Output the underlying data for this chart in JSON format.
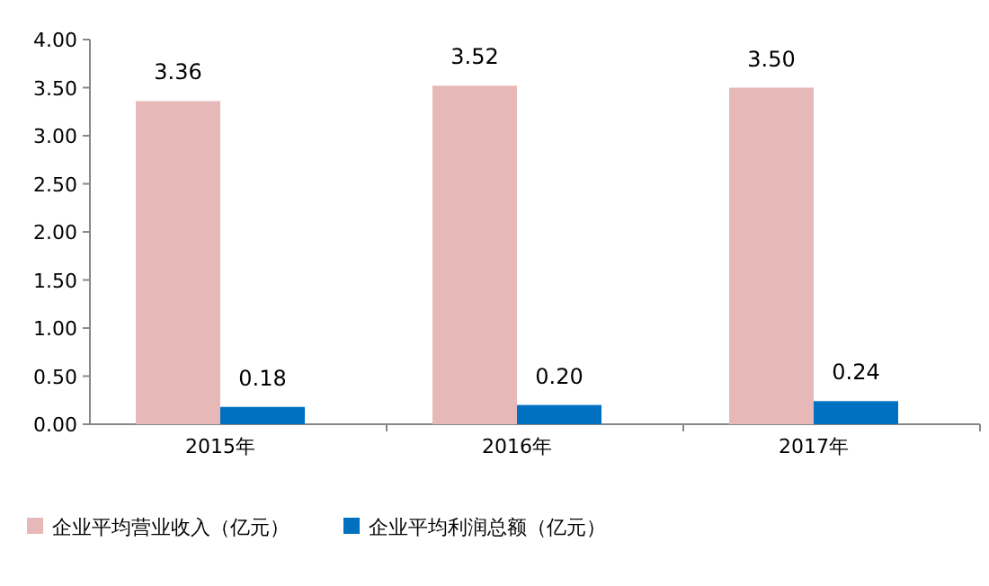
{
  "chart_data": {
    "type": "bar",
    "categories": [
      "2015年",
      "2016年",
      "2017年"
    ],
    "series": [
      {
        "name": "企业平均营业收入（亿元）",
        "color": "#e6b9b8",
        "values": [
          3.36,
          3.52,
          3.5
        ],
        "value_labels": [
          "3.36",
          "3.52",
          "3.50"
        ]
      },
      {
        "name": "企业平均利润总额（亿元）",
        "color": "#0070c0",
        "values": [
          0.18,
          0.2,
          0.24
        ],
        "value_labels": [
          "0.18",
          "0.20",
          "0.24"
        ]
      }
    ],
    "ylim": [
      0,
      4
    ],
    "yticks": [
      {
        "value": 0,
        "label": "0.00"
      },
      {
        "value": 0.5,
        "label": "0.50"
      },
      {
        "value": 1,
        "label": "1.00"
      },
      {
        "value": 1.5,
        "label": "1.50"
      },
      {
        "value": 2,
        "label": "2.00"
      },
      {
        "value": 2.5,
        "label": "2.50"
      },
      {
        "value": 3,
        "label": "3.00"
      },
      {
        "value": 3.5,
        "label": "3.50"
      },
      {
        "value": 4,
        "label": "4.00"
      }
    ],
    "legend": "bottom"
  }
}
